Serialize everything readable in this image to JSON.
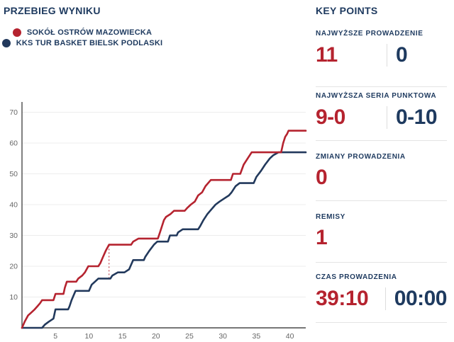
{
  "chart": {
    "title": "PRZEBIEG WYNIKU"
  },
  "chart_data": {
    "type": "line",
    "title": "PRZEBIEG WYNIKU",
    "xlabel": "",
    "ylabel": "",
    "x_ticks": [
      5,
      10,
      15,
      20,
      25,
      30,
      35,
      40
    ],
    "y_ticks": [
      10,
      20,
      30,
      40,
      50,
      60,
      70
    ],
    "xlim": [
      0,
      42.4
    ],
    "ylim": [
      0,
      73
    ],
    "grid": "horizontal",
    "legend_position": "top-left",
    "series": [
      {
        "name": "SOKÓŁ OSTRÓW MAZOWIECKA",
        "color": "#b5232f",
        "final_score": 64,
        "points": [
          [
            0,
            0
          ],
          [
            0.4,
            2
          ],
          [
            0.9,
            4
          ],
          [
            1.4,
            5
          ],
          [
            1.9,
            6
          ],
          [
            2.3,
            7
          ],
          [
            2.7,
            8
          ],
          [
            3,
            9
          ],
          [
            4.7,
            9
          ],
          [
            5,
            11
          ],
          [
            6.2,
            11
          ],
          [
            6.4,
            13
          ],
          [
            6.7,
            15
          ],
          [
            8.1,
            15
          ],
          [
            8.4,
            16
          ],
          [
            9,
            17
          ],
          [
            9.4,
            18
          ],
          [
            9.9,
            20
          ],
          [
            11.4,
            20
          ],
          [
            11.7,
            21
          ],
          [
            12.1,
            23
          ],
          [
            12.5,
            25
          ],
          [
            13,
            27
          ],
          [
            16.3,
            27
          ],
          [
            16.6,
            28
          ],
          [
            17.4,
            29
          ],
          [
            20.3,
            29
          ],
          [
            20.6,
            31
          ],
          [
            20.9,
            33
          ],
          [
            21.2,
            35
          ],
          [
            21.5,
            36
          ],
          [
            22.2,
            37
          ],
          [
            22.7,
            38
          ],
          [
            24.3,
            38
          ],
          [
            24.7,
            39
          ],
          [
            25.2,
            40
          ],
          [
            25.8,
            41
          ],
          [
            26.3,
            43
          ],
          [
            26.9,
            44
          ],
          [
            27.4,
            46
          ],
          [
            28.2,
            48
          ],
          [
            31.2,
            48
          ],
          [
            31.5,
            50
          ],
          [
            32.6,
            50
          ],
          [
            33.1,
            53
          ],
          [
            33.7,
            55
          ],
          [
            34.3,
            57
          ],
          [
            38.7,
            57
          ],
          [
            39,
            60
          ],
          [
            39.3,
            62
          ],
          [
            39.6,
            63
          ],
          [
            39.8,
            64
          ],
          [
            40,
            64
          ]
        ]
      },
      {
        "name": "KKS TUR BASKET BIELSK PODLASKI",
        "color": "#22395c",
        "final_score": 57,
        "points": [
          [
            0,
            0
          ],
          [
            3,
            0
          ],
          [
            3.4,
            1
          ],
          [
            4,
            2
          ],
          [
            4.7,
            3
          ],
          [
            5,
            6
          ],
          [
            6.9,
            6
          ],
          [
            7.1,
            7
          ],
          [
            7.4,
            9
          ],
          [
            8,
            12
          ],
          [
            10,
            12
          ],
          [
            10.4,
            14
          ],
          [
            10.9,
            15
          ],
          [
            11.4,
            16
          ],
          [
            13.2,
            16
          ],
          [
            13.5,
            17
          ],
          [
            14.3,
            18
          ],
          [
            15.3,
            18
          ],
          [
            16,
            19
          ],
          [
            16.6,
            22
          ],
          [
            18.2,
            22
          ],
          [
            18.4,
            23
          ],
          [
            19,
            25
          ],
          [
            19.7,
            27
          ],
          [
            20.2,
            28
          ],
          [
            21.8,
            28
          ],
          [
            22.1,
            30
          ],
          [
            23.1,
            30
          ],
          [
            23.3,
            31
          ],
          [
            24,
            32
          ],
          [
            26.3,
            32
          ],
          [
            26.6,
            33
          ],
          [
            27.1,
            35
          ],
          [
            27.7,
            37
          ],
          [
            28.1,
            38
          ],
          [
            28.9,
            40
          ],
          [
            29.5,
            41
          ],
          [
            30.2,
            42
          ],
          [
            30.9,
            43
          ],
          [
            31.3,
            44
          ],
          [
            31.9,
            46
          ],
          [
            32.5,
            47
          ],
          [
            34.6,
            47
          ],
          [
            35,
            49
          ],
          [
            35.7,
            51
          ],
          [
            36.3,
            53
          ],
          [
            37,
            55
          ],
          [
            37.5,
            56
          ],
          [
            38.3,
            57
          ],
          [
            40,
            57
          ]
        ]
      }
    ],
    "max_lead_marker": {
      "x": 13,
      "y_from": 16,
      "y_to": 27,
      "color": "#b5232f",
      "style": "dashed"
    }
  },
  "key_points": {
    "title": "KEY POINTS",
    "sections": [
      {
        "label": "NAJWYŻSZE PROWADZENIE",
        "home": "11",
        "away": "0"
      },
      {
        "label": "NAJWYŻSZA SERIA PUNKTOWA",
        "home": "9-0",
        "away": "0-10"
      },
      {
        "label": "ZMIANY PROWADZENIA",
        "home": "0",
        "away": null
      },
      {
        "label": "REMISY",
        "home": "1",
        "away": null
      },
      {
        "label": "CZAS PROWADZENIA",
        "home": "39:10",
        "away": "00:00"
      }
    ]
  },
  "colors": {
    "home": "#b5232f",
    "away": "#1e3a5f",
    "grid": "#ededed",
    "axis": "#4a4a4a",
    "tick_text": "#666666",
    "divider": "#e4e4e4"
  }
}
